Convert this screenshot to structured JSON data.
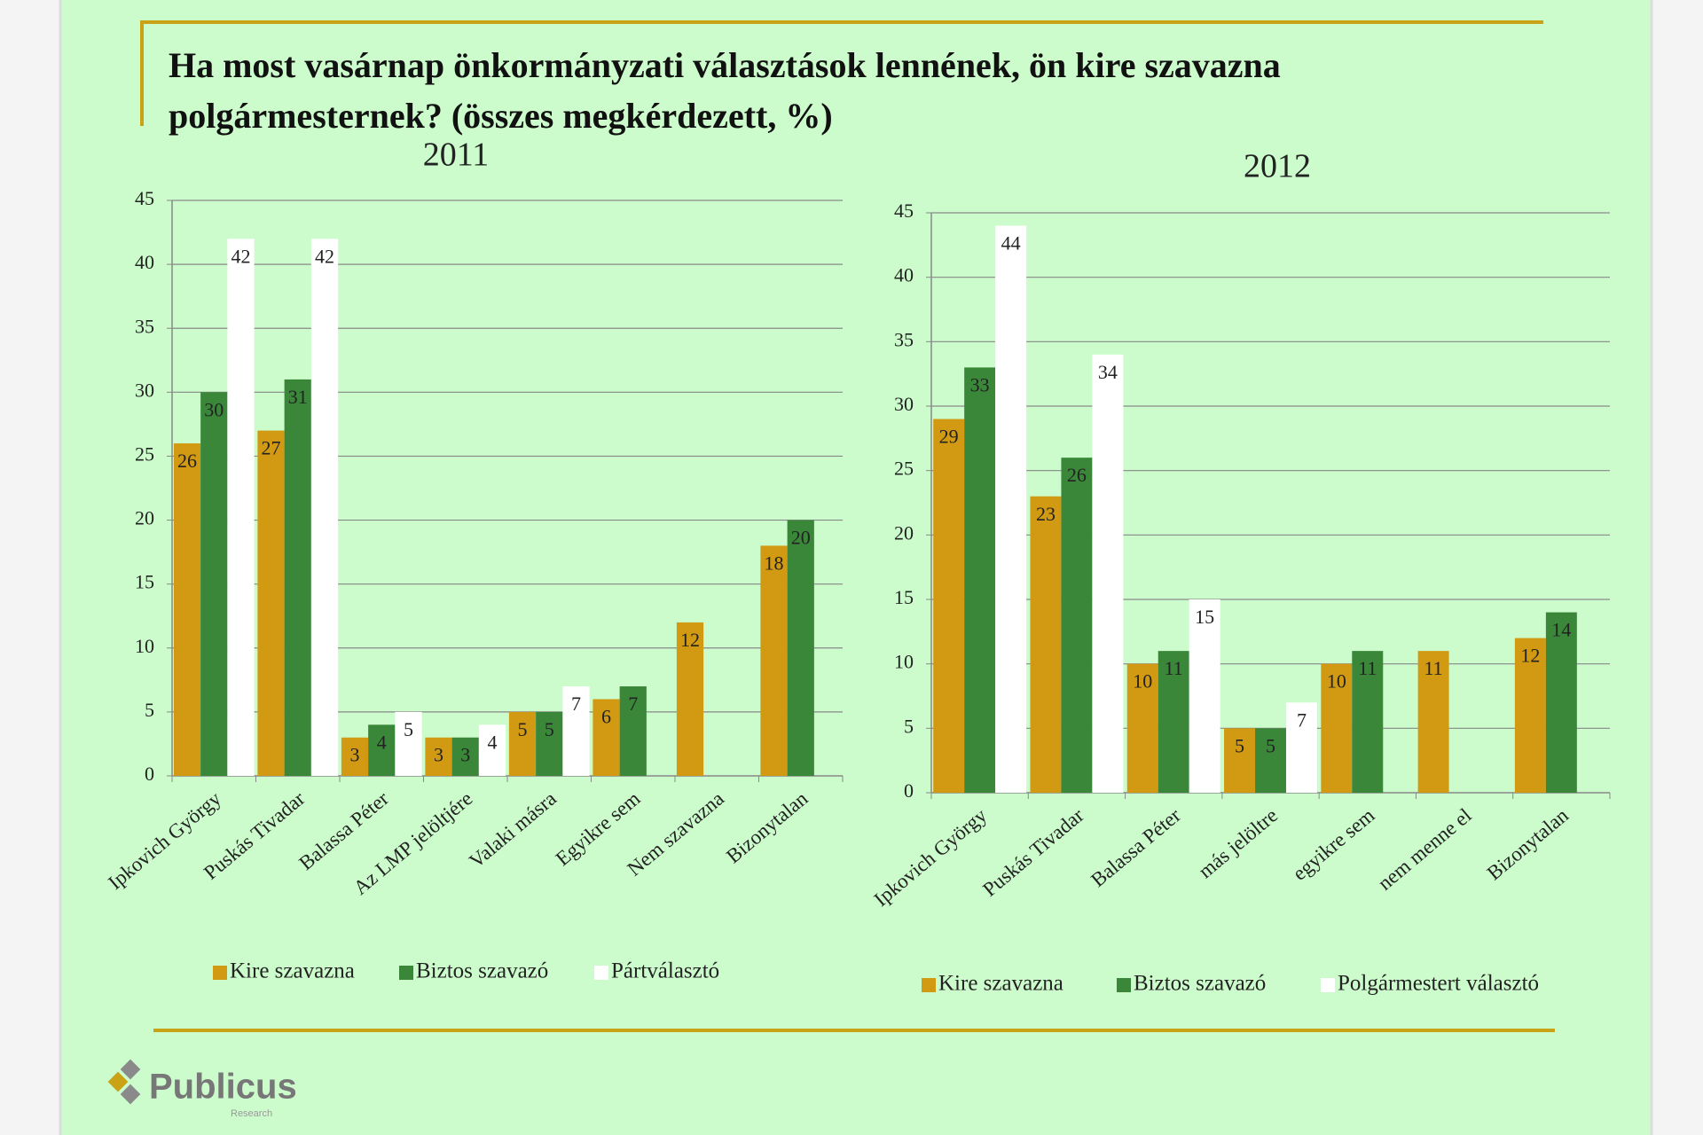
{
  "title": "Ha most vasárnap önkormányzati választások lennének, ön kire szavazna polgármesternek? (összes megkérdezett, %)",
  "logo": {
    "name": "Publicus",
    "tagline": "Research"
  },
  "chart_data": [
    {
      "type": "bar",
      "title": "2011",
      "categories": [
        "Ipkovich György",
        "Puskás Tivadar",
        "Balassa Péter",
        "Az LMP jelöltjére",
        "Valaki másra",
        "Egyikre sem",
        "Nem szavazna",
        "Bizonytalan"
      ],
      "series": [
        {
          "name": "Kire szavazna",
          "color": "#d19a12",
          "values": [
            26,
            27,
            3,
            3,
            5,
            6,
            12,
            18
          ]
        },
        {
          "name": "Biztos szavazó",
          "color": "#3a873a",
          "values": [
            30,
            31,
            4,
            3,
            5,
            7,
            null,
            20
          ]
        },
        {
          "name": "Pártválasztó",
          "color": "#ffffff",
          "values": [
            42,
            42,
            5,
            4,
            7,
            null,
            null,
            null
          ]
        }
      ],
      "ylim": [
        0,
        45
      ],
      "yticks": [
        0,
        5,
        10,
        15,
        20,
        25,
        30,
        35,
        40,
        45
      ],
      "grid": true,
      "legend": "bottom"
    },
    {
      "type": "bar",
      "title": "2012",
      "categories": [
        "Ipkovich György",
        "Puskás Tivadar",
        "Balassa Péter",
        "más jelöltre",
        "egyikre sem",
        "nem menne el",
        "Bizonytalan"
      ],
      "series": [
        {
          "name": "Kire szavazna",
          "color": "#d19a12",
          "values": [
            29,
            23,
            10,
            5,
            10,
            11,
            12
          ]
        },
        {
          "name": "Biztos szavazó",
          "color": "#3a873a",
          "values": [
            33,
            26,
            11,
            5,
            11,
            null,
            14
          ]
        },
        {
          "name": "Polgármestert választó",
          "color": "#ffffff",
          "values": [
            44,
            34,
            15,
            7,
            null,
            null,
            null
          ]
        }
      ],
      "ylim": [
        0,
        45
      ],
      "yticks": [
        0,
        5,
        10,
        15,
        20,
        25,
        30,
        35,
        40,
        45
      ],
      "grid": true,
      "legend": "bottom"
    }
  ]
}
